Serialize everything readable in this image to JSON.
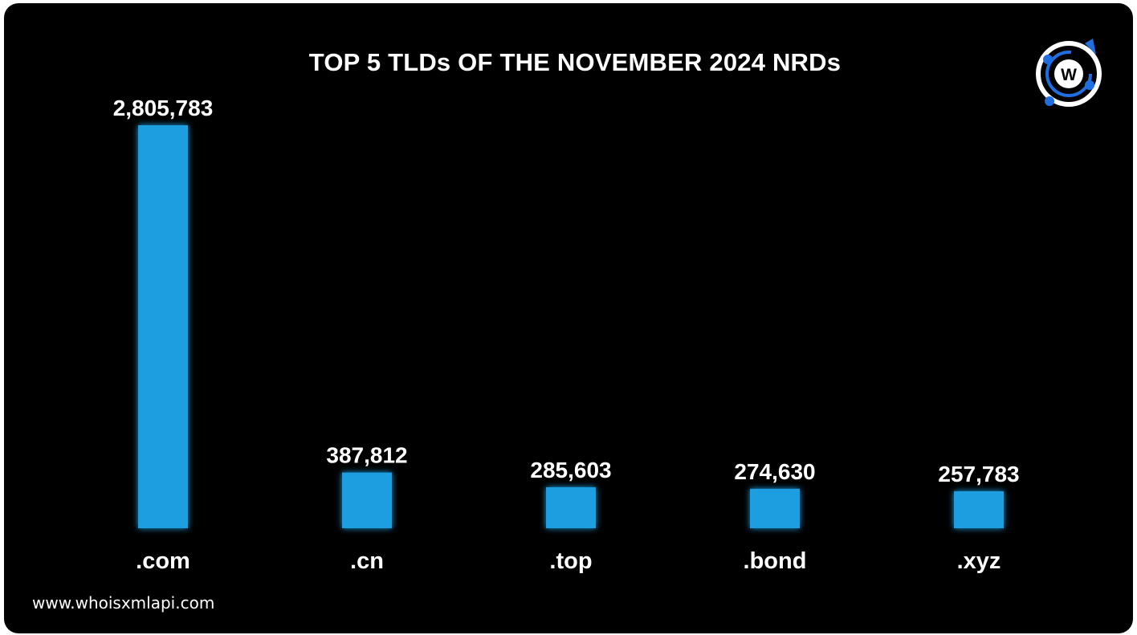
{
  "title": "TOP 5 TLDs OF THE NOVEMBER 2024 NRDs",
  "footer": {
    "website": "www.whoisxmlapi.com"
  },
  "logo": {
    "letter": "W",
    "icon": "whoisxmlapi-logo-icon"
  },
  "colors": {
    "bar": "#1a9ee0",
    "background": "#000000",
    "text": "#ffffff",
    "logo_accent": "#1f6fe0"
  },
  "chart_data": {
    "type": "bar",
    "title": "TOP 5 TLDs OF THE NOVEMBER 2024 NRDs",
    "categories": [
      ".com",
      ".cn",
      ".top",
      ".bond",
      ".xyz"
    ],
    "values": [
      2805783,
      387812,
      285603,
      274630,
      257783
    ],
    "value_labels": [
      "2,805,783",
      "387,812",
      "285,603",
      "274,630",
      "257,783"
    ],
    "xlabel": "",
    "ylabel": "",
    "ylim": [
      0,
      2805783
    ],
    "grid": false,
    "legend": "none"
  }
}
